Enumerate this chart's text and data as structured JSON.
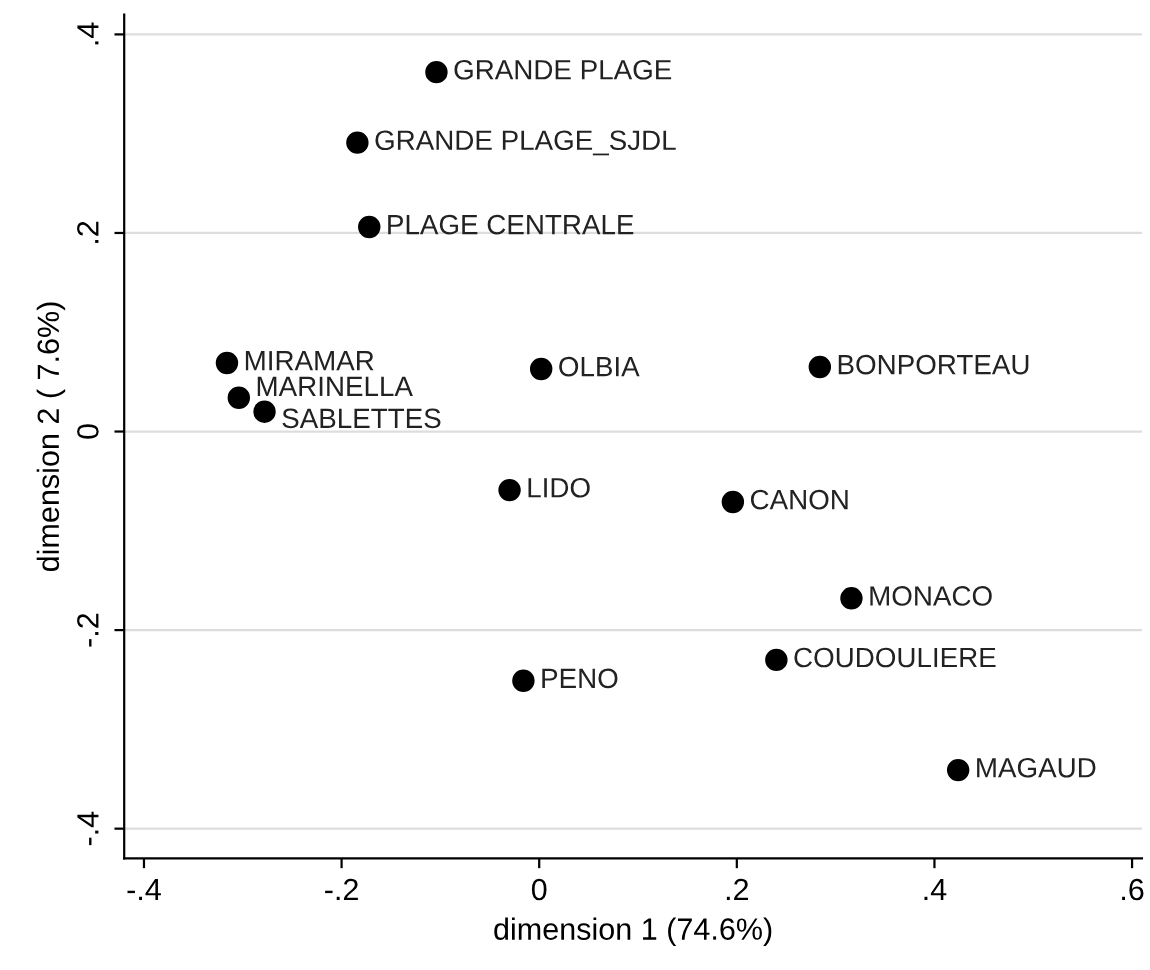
{
  "chart_data": {
    "type": "scatter",
    "xlabel": "dimension 1 (74.6%)",
    "ylabel": "dimension 2 ( 7.6%)",
    "x": [
      -0.104,
      -0.184,
      -0.172,
      -0.316,
      -0.304,
      -0.278,
      0.002,
      0.284,
      -0.03,
      0.196,
      0.316,
      0.24,
      -0.016,
      0.424
    ],
    "series": [
      {
        "color": "#000000",
        "values": [
          0.362,
          0.291,
          0.206,
          0.069,
          0.034,
          0.02,
          0.063,
          0.065,
          -0.059,
          -0.071,
          -0.168,
          -0.23,
          -0.251,
          -0.341
        ]
      }
    ],
    "marker": "circle",
    "annotations": [
      {
        "text": "GRANDE PLAGE",
        "x": -0.104,
        "y": 0.362
      },
      {
        "text": "GRANDE PLAGE_SJDL",
        "x": -0.184,
        "y": 0.291
      },
      {
        "text": "PLAGE CENTRALE",
        "x": -0.172,
        "y": 0.206
      },
      {
        "text": "MIRAMAR",
        "x": -0.316,
        "y": 0.069
      },
      {
        "text": "MARINELLA",
        "x": -0.304,
        "y": 0.034
      },
      {
        "text": "SABLETTES",
        "x": -0.278,
        "y": 0.02
      },
      {
        "text": "OLBIA",
        "x": 0.002,
        "y": 0.063
      },
      {
        "text": "BONPORTEAU",
        "x": 0.284,
        "y": 0.065
      },
      {
        "text": "LIDO",
        "x": -0.03,
        "y": -0.059
      },
      {
        "text": "CANON",
        "x": 0.196,
        "y": -0.071
      },
      {
        "text": "MONACO",
        "x": 0.316,
        "y": -0.168
      },
      {
        "text": "COUDOULIERE",
        "x": 0.24,
        "y": -0.23
      },
      {
        "text": "PENO",
        "x": -0.016,
        "y": -0.251
      },
      {
        "text": "MAGAUD",
        "x": 0.424,
        "y": -0.341
      }
    ],
    "xlim": [
      -0.42,
      0.61
    ],
    "ylim": [
      -0.43,
      0.42
    ],
    "xticks": [
      {
        "value": -0.4,
        "label": "-.4"
      },
      {
        "value": -0.2,
        "label": "-.2"
      },
      0,
      {
        "value": 0.2,
        "label": ".2"
      },
      {
        "value": 0.4,
        "label": ".4"
      },
      {
        "value": 0.6,
        "label": ".6"
      }
    ],
    "yticks": [
      {
        "value": -0.4,
        "label": "-.4"
      },
      {
        "value": -0.2,
        "label": "-.2"
      },
      0,
      {
        "value": 0.2,
        "label": ".2"
      },
      {
        "value": 0.4,
        "label": ".4"
      }
    ],
    "grid": "y"
  }
}
